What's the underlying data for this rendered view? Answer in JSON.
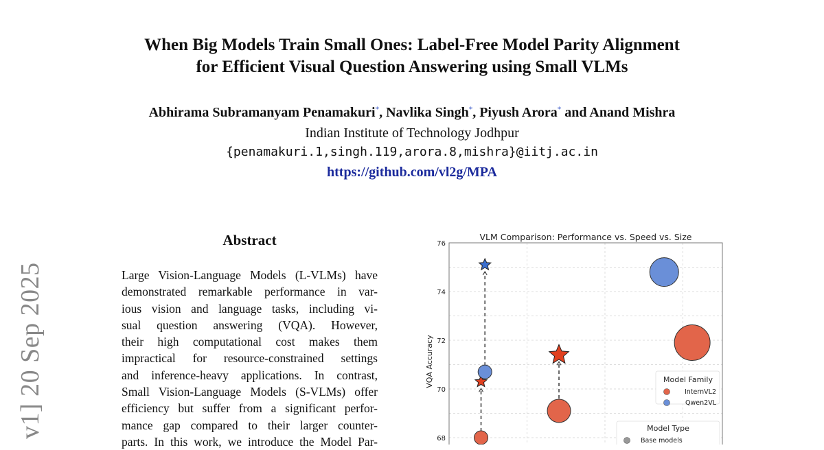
{
  "paper": {
    "title_lines": [
      "When Big Models Train Small Ones: Label-Free Model Parity Alignment",
      "for Efficient Visual Question Answering using Small VLMs"
    ],
    "authors": [
      {
        "name": "Abhirama Subramanyam Penamakuri",
        "mark": "*"
      },
      {
        "name": "Navlika Singh",
        "mark": "*"
      },
      {
        "name": "Piyush Arora",
        "mark": "*"
      },
      {
        "name": "Anand Mishra",
        "mark": ""
      }
    ],
    "author_sep": ", ",
    "author_and": " and ",
    "institution": "Indian Institute of Technology Jodhpur",
    "email": "{penamakuri.1,singh.119,arora.8,mishra}@iitj.ac.in",
    "link": "https://github.com/vl2g/MPA",
    "arxiv_side": "v1]  20 Sep 2025",
    "abstract_heading": "Abstract",
    "abstract_lines": [
      "Large Vision-Language Models (L-VLMs) have",
      "demonstrated remarkable performance in var-",
      "ious vision and language tasks, including vi-",
      "sual question answering (VQA). However,",
      "their high computational cost makes them",
      "impractical for resource-constrained settings",
      "and inference-heavy applications. In contrast,",
      "Small Vision-Language Models (S-VLMs) offer",
      "efficiency but suffer from a significant perfor-",
      "mance gap compared to their larger counter-",
      "parts. In this work, we introduce the Model Par-"
    ]
  },
  "chart_data": {
    "type": "scatter",
    "title": "VLM Comparison: Performance vs. Speed vs. Size",
    "ylabel": "VQA Accuracy",
    "ylim": [
      67.5,
      76
    ],
    "yticks": [
      "76",
      "74",
      "72",
      "70",
      "68"
    ],
    "ytick_values": [
      76,
      74,
      72,
      70,
      68
    ],
    "xlim": [
      0,
      3.5
    ],
    "xgrid": [
      1,
      2,
      3
    ],
    "grid": true,
    "colors": {
      "InternVL2": "#e2654a",
      "Qwen2VL": "#6a8fd8",
      "InternVL2_star": "#e0401f",
      "Qwen2VL_star": "#3a6fd0"
    },
    "points": [
      {
        "family": "InternVL2",
        "type": "base",
        "x": 0.41,
        "y": 68.0,
        "size": 1
      },
      {
        "family": "InternVL2",
        "type": "mpa",
        "x": 0.41,
        "y": 70.3,
        "size": 1
      },
      {
        "family": "Qwen2VL",
        "type": "base",
        "x": 0.46,
        "y": 70.7,
        "size": 1
      },
      {
        "family": "Qwen2VL",
        "type": "mpa",
        "x": 0.46,
        "y": 75.1,
        "size": 1
      },
      {
        "family": "InternVL2",
        "type": "base",
        "x": 1.41,
        "y": 69.1,
        "size": 2
      },
      {
        "family": "InternVL2",
        "type": "mpa",
        "x": 1.41,
        "y": 71.4,
        "size": 2
      },
      {
        "family": "Qwen2VL",
        "type": "base",
        "x": 2.76,
        "y": 74.8,
        "size": 3
      },
      {
        "family": "InternVL2",
        "type": "base",
        "x": 3.12,
        "y": 71.9,
        "size": 3.5
      }
    ],
    "arrows": [
      [
        0,
        1
      ],
      [
        2,
        3
      ],
      [
        4,
        5
      ]
    ],
    "legend_family": {
      "title": "Model Family",
      "entries": [
        "InternVL2",
        "Qwen2VL"
      ]
    },
    "legend_type": {
      "title": "Model Type",
      "entries": [
        "Base models"
      ]
    },
    "legend_placement": "right"
  }
}
